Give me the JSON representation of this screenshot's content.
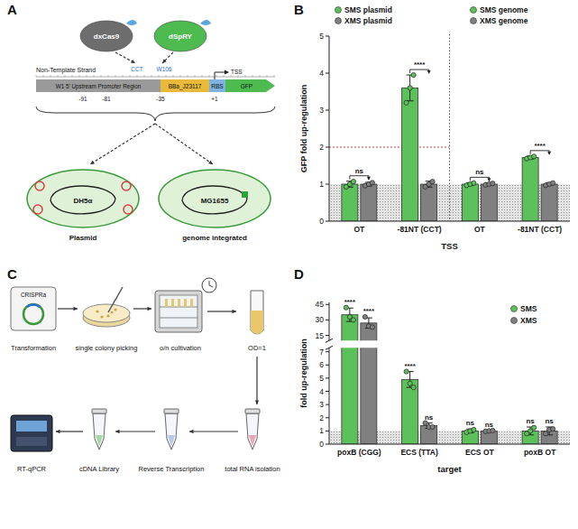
{
  "chart_data": [
    {
      "panel_label": "B",
      "type": "bar",
      "x_label": "TSS",
      "y_label": "GFP fold up-regulation",
      "categories": [
        "OT",
        "-81NT (CCT)",
        "OT",
        "-81NT (CCT)"
      ],
      "series": [
        {
          "name": "SMS plasmid",
          "color": "#5cc15a",
          "values": [
            1.0,
            3.6,
            null,
            null
          ],
          "errors": [
            0.08,
            0.35,
            null,
            null
          ],
          "points": [
            [
              0.93,
              1.0,
              1.07
            ],
            [
              3.2,
              3.6,
              3.95
            ],
            null,
            null
          ]
        },
        {
          "name": "XMS plasmid",
          "color": "#808080",
          "values": [
            1.0,
            1.0,
            null,
            null
          ],
          "errors": [
            0.05,
            0.08,
            null,
            null
          ],
          "points": [
            [
              0.96,
              1.0,
              1.04
            ],
            [
              0.93,
              1.0,
              1.07
            ],
            null,
            null
          ]
        },
        {
          "name": "SMS genome",
          "color": "#5cc15a",
          "values": [
            null,
            null,
            1.0,
            1.72
          ],
          "errors": [
            null,
            null,
            0.04,
            0.04
          ],
          "points": [
            null,
            null,
            [
              0.97,
              1.0,
              1.03
            ],
            [
              1.69,
              1.72,
              1.75
            ]
          ]
        },
        {
          "name": "XMS genome",
          "color": "#808080",
          "values": [
            null,
            null,
            1.0,
            1.0
          ],
          "errors": [
            null,
            null,
            0.03,
            0.03
          ],
          "points": [
            null,
            null,
            [
              0.98,
              1.0,
              1.02
            ],
            [
              0.97,
              1.0,
              1.03
            ]
          ]
        }
      ],
      "significance": [
        "ns",
        "****",
        "ns",
        "****"
      ],
      "threshold": 2,
      "baseline": 1,
      "ylim": [
        0,
        5
      ],
      "yticks": [
        0,
        1,
        2,
        3,
        4,
        5
      ],
      "legend": "upper left"
    },
    {
      "panel_label": "D",
      "type": "bar",
      "x_label": "target",
      "y_label": "fold up-regulation",
      "categories": [
        "poxB (CGG)",
        "ECS (TTA)",
        "ECS OT",
        "poxB OT"
      ],
      "series": [
        {
          "name": "SMS",
          "color": "#5cc15a",
          "values": [
            35,
            4.9,
            1.0,
            1.0
          ],
          "errors": [
            6.5,
            0.6,
            0.15,
            0.3
          ],
          "points": [
            [
              42,
              33,
              30
            ],
            [
              5.5,
              4.6,
              4.3
            ],
            [
              0.9,
              1.0,
              1.1
            ],
            [
              0.8,
              1.0,
              1.25
            ]
          ],
          "significance": [
            "****",
            "****",
            "ns",
            "ns"
          ]
        },
        {
          "name": "XMS",
          "color": "#808080",
          "values": [
            27,
            1.4,
            1.0,
            1.0
          ],
          "errors": [
            5,
            0.2,
            0.05,
            0.3
          ],
          "points": [
            [
              33,
              24,
              23
            ],
            [
              1.6,
              1.3,
              1.3
            ],
            [
              0.97,
              1.0,
              1.03
            ],
            [
              0.8,
              1.1,
              1.15
            ]
          ],
          "significance": [
            "****",
            "ns",
            "ns",
            "ns"
          ]
        }
      ],
      "baseline": 1,
      "ylim": [
        0,
        47
      ],
      "axis_break": [
        7.3,
        10
      ],
      "yticks": [
        0,
        1,
        2,
        3,
        4,
        5,
        6,
        7,
        15,
        30,
        45
      ],
      "legend": "upper right"
    }
  ],
  "diagram_a": {
    "panel_label": "A",
    "proteins": [
      "dxCas9",
      "dSpRY"
    ],
    "strand": "Non-Template Strand",
    "pam_labels": [
      "CCT",
      "W106"
    ],
    "regions": [
      "W1 5' Upstream Promoter Region",
      "BBa_J23117",
      "RBS",
      "GFP"
    ],
    "positions": [
      "-91",
      "-81",
      "-35",
      "+1"
    ],
    "tss": "TSS",
    "hosts": [
      {
        "strain": "DH5α",
        "form": "Plasmid"
      },
      {
        "strain": "MG1655",
        "form": "genome integrated"
      }
    ]
  },
  "diagram_c": {
    "panel_label": "C",
    "plasmid": "CRISPRa",
    "steps": [
      "Transformation",
      "single colony picking",
      "o/n cultivation",
      "OD=1",
      "total RNA isolation",
      "Reverse Transcription",
      "cDNA Library",
      "RT-qPCR"
    ]
  }
}
